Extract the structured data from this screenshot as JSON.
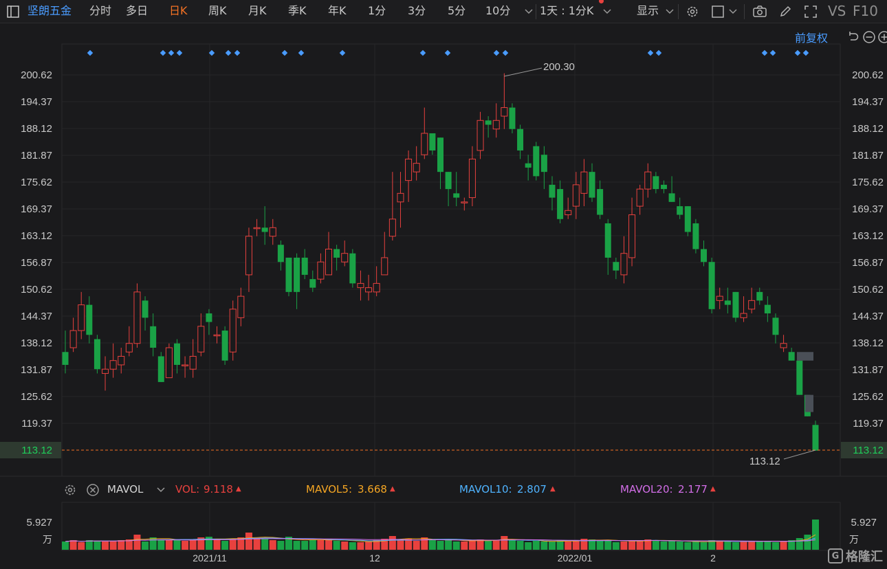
{
  "toolbar": {
    "stock_name": "坚朗五金",
    "tabs": [
      "分时",
      "多日",
      "日K",
      "周K",
      "月K",
      "季K",
      "年K",
      "1分",
      "3分",
      "5分",
      "10分"
    ],
    "active_tab": "日K",
    "period_select": "1天 : 1分K",
    "display_label": "显示",
    "vs_label": "VS",
    "f10_label": "F10"
  },
  "subbar": {
    "adjust_label": "前复权"
  },
  "price_axis": {
    "ticks": [
      "200.62",
      "194.37",
      "188.12",
      "181.87",
      "175.62",
      "169.37",
      "163.12",
      "156.87",
      "150.62",
      "144.37",
      "138.12",
      "131.87",
      "125.62",
      "119.37"
    ],
    "current_price": "113.12"
  },
  "annotations": {
    "high_label": "200.30",
    "low_label": "113.12"
  },
  "volume_panel": {
    "indicator": "MAVOL",
    "vol_label": "VOL:",
    "vol_value": "9.118",
    "mavol5_label": "MAVOL5:",
    "mavol5_value": "3.668",
    "mavol10_label": "MAVOL10:",
    "mavol10_value": "2.807",
    "mavol20_label": "MAVOL20:",
    "mavol20_value": "2.177",
    "axis_value": "5.927",
    "axis_unit": "万"
  },
  "x_axis_labels": [
    "2021/11",
    "12",
    "2022/01",
    "2"
  ],
  "colors": {
    "up": "#e8413e",
    "down": "#1aa246",
    "accent": "#f57224",
    "blue": "#4a9cff"
  },
  "brand": {
    "box_glyph": "G",
    "text": "格隆汇"
  },
  "chart_data": {
    "type": "candlestick",
    "ylim": [
      110,
      205
    ],
    "x_labels": [
      "2021/11",
      "12",
      "2022/01",
      "2"
    ],
    "current_price": 113.12,
    "max_label": 200.3,
    "candles": [
      [
        136,
        133,
        141,
        131
      ],
      [
        137,
        141,
        144,
        136
      ],
      [
        141,
        147,
        150,
        139
      ],
      [
        147,
        140,
        149,
        138
      ],
      [
        139,
        132,
        140,
        131
      ],
      [
        131,
        132,
        135,
        127
      ],
      [
        132,
        134,
        138,
        130
      ],
      [
        133,
        135,
        137,
        131
      ],
      [
        136,
        138,
        142,
        135
      ],
      [
        138,
        150,
        152,
        137
      ],
      [
        148,
        144,
        149,
        141
      ],
      [
        142,
        137,
        145,
        135
      ],
      [
        135,
        129,
        136,
        129
      ],
      [
        130,
        137,
        138,
        130
      ],
      [
        138,
        133,
        139,
        131
      ],
      [
        133,
        133,
        135,
        130
      ],
      [
        132,
        135,
        139,
        130
      ],
      [
        136,
        142,
        145,
        135
      ],
      [
        145,
        143,
        146,
        140
      ],
      [
        140,
        140,
        142,
        138
      ],
      [
        141,
        134,
        142,
        133
      ],
      [
        136,
        146,
        148,
        134
      ],
      [
        144,
        149,
        151,
        142
      ],
      [
        154,
        163,
        165,
        150
      ],
      [
        165,
        165,
        167,
        163
      ],
      [
        165,
        164,
        170,
        161
      ],
      [
        163,
        165,
        167,
        161
      ],
      [
        161,
        157,
        162,
        155
      ],
      [
        158,
        150,
        158,
        149
      ],
      [
        158,
        150,
        159,
        146
      ],
      [
        158,
        154,
        160,
        153
      ],
      [
        153,
        151,
        155,
        150
      ],
      [
        153,
        157,
        159,
        152
      ],
      [
        154,
        160,
        164,
        154
      ],
      [
        160,
        158,
        161,
        155
      ],
      [
        157,
        159,
        162,
        156
      ],
      [
        159,
        152,
        160,
        151
      ],
      [
        151,
        152,
        155,
        148
      ],
      [
        150,
        151,
        154,
        148
      ],
      [
        150,
        152,
        156,
        149
      ],
      [
        154,
        158,
        164,
        154
      ],
      [
        163,
        167,
        178,
        162
      ],
      [
        171,
        173,
        178,
        165
      ],
      [
        176,
        181,
        183,
        171
      ],
      [
        178,
        180,
        184,
        176
      ],
      [
        182,
        187,
        193,
        181
      ],
      [
        187,
        183,
        187,
        182
      ],
      [
        186,
        178,
        186,
        174
      ],
      [
        178,
        174,
        178,
        170
      ],
      [
        173,
        172,
        178,
        170
      ],
      [
        171,
        171,
        172,
        169
      ],
      [
        172,
        181,
        184,
        170
      ],
      [
        183,
        190,
        192,
        181
      ],
      [
        190,
        189,
        191,
        186
      ],
      [
        188,
        190,
        194,
        186
      ],
      [
        191,
        193,
        201,
        188
      ],
      [
        193,
        188,
        194,
        187
      ],
      [
        188,
        183,
        189,
        181
      ],
      [
        180,
        179,
        182,
        176
      ],
      [
        184,
        177,
        185,
        176
      ],
      [
        182,
        178,
        184,
        174
      ],
      [
        175,
        172,
        177,
        169
      ],
      [
        174,
        167,
        176,
        166
      ],
      [
        168,
        169,
        172,
        167
      ],
      [
        170,
        175,
        178,
        167
      ],
      [
        173,
        178,
        181,
        170
      ],
      [
        178,
        172,
        180,
        171
      ],
      [
        174,
        168,
        176,
        167
      ],
      [
        166,
        158,
        167,
        154
      ],
      [
        157,
        155,
        158,
        153
      ],
      [
        154,
        159,
        163,
        152
      ],
      [
        158,
        168,
        172,
        156
      ],
      [
        170,
        174,
        175,
        168
      ],
      [
        174,
        178,
        180,
        172
      ],
      [
        177,
        174,
        178,
        173
      ],
      [
        175,
        174,
        176,
        173
      ],
      [
        173,
        171,
        177,
        171
      ],
      [
        170,
        168,
        172,
        167
      ],
      [
        170,
        164,
        170,
        163
      ],
      [
        166,
        160,
        167,
        159
      ],
      [
        160,
        157,
        162,
        156
      ],
      [
        157,
        146,
        158,
        145
      ],
      [
        148,
        149,
        151,
        146
      ],
      [
        148,
        147,
        151,
        145
      ],
      [
        150,
        144,
        150,
        143
      ],
      [
        144,
        145,
        149,
        143
      ],
      [
        146,
        148,
        151,
        145
      ],
      [
        150,
        148,
        151,
        147
      ],
      [
        147,
        145,
        149,
        143
      ],
      [
        144,
        140,
        145,
        138
      ],
      [
        137,
        138,
        140,
        136
      ],
      [
        136,
        134,
        137,
        134
      ],
      [
        134,
        126,
        134,
        126
      ],
      [
        126,
        121,
        126,
        121
      ],
      [
        119,
        113,
        120,
        113
      ]
    ],
    "vol_heights": [
      12,
      14,
      11,
      14,
      13,
      12,
      13,
      14,
      15,
      22,
      12,
      18,
      14,
      15,
      14,
      13,
      14,
      18,
      19,
      15,
      13,
      16,
      18,
      25,
      17,
      16,
      14,
      13,
      19,
      13,
      13,
      15,
      14,
      16,
      13,
      12,
      11,
      11,
      12,
      14,
      16,
      20,
      15,
      16,
      13,
      18,
      15,
      13,
      14,
      12,
      12,
      14,
      15,
      13,
      14,
      20,
      14,
      13,
      11,
      13,
      12,
      12,
      14,
      12,
      13,
      16,
      15,
      14,
      13,
      11,
      12,
      14,
      13,
      15,
      14,
      12,
      13,
      12,
      11,
      12,
      11,
      14,
      13,
      12,
      11,
      12,
      13,
      13,
      12,
      11,
      12,
      14,
      17,
      22,
      44
    ]
  }
}
